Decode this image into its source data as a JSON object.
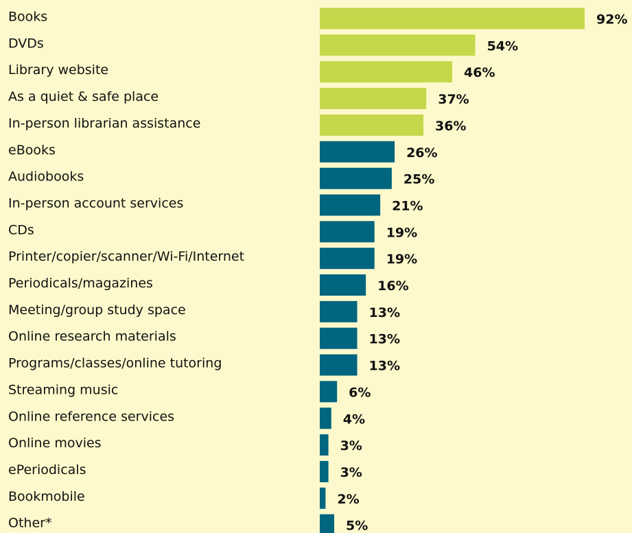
{
  "chart_data": {
    "type": "bar",
    "orientation": "horizontal",
    "categories": [
      "Books",
      "DVDs",
      "Library website",
      "As a quiet & safe place",
      "In-person librarian assistance",
      "eBooks",
      "Audiobooks",
      "In-person account services",
      "CDs",
      "Printer/copier/scanner/Wi-Fi/Internet",
      "Periodicals/magazines",
      "Meeting/group study space",
      "Online research materials",
      "Programs/classes/online tutoring",
      "Streaming music",
      "Online reference services",
      "Online movies",
      "ePeriodicals",
      "Bookmobile",
      "Other*"
    ],
    "values": [
      92,
      54,
      46,
      37,
      36,
      26,
      25,
      21,
      19,
      19,
      16,
      13,
      13,
      13,
      6,
      4,
      3,
      3,
      2,
      5
    ],
    "value_labels": [
      "92%",
      "54%",
      "46%",
      "37%",
      "36%",
      "26%",
      "25%",
      "21%",
      "19%",
      "19%",
      "16%",
      "13%",
      "13%",
      "13%",
      "6%",
      "4%",
      "3%",
      "3%",
      "2%",
      "5%"
    ],
    "colors": [
      "#c5d84c",
      "#c5d84c",
      "#c5d84c",
      "#c5d84c",
      "#c5d84c",
      "#00657f",
      "#00657f",
      "#00657f",
      "#00657f",
      "#00657f",
      "#00657f",
      "#00657f",
      "#00657f",
      "#00657f",
      "#00657f",
      "#00657f",
      "#00657f",
      "#00657f",
      "#00657f",
      "#00657f"
    ]
  }
}
